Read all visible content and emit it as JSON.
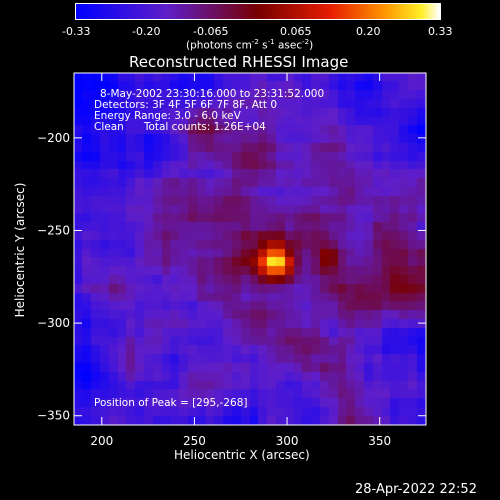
{
  "colorbar": {
    "ticks": [
      "-0.33",
      "-0.20",
      "-0.065",
      "0.065",
      "0.20",
      "0.33"
    ],
    "unit_main": "(photons cm",
    "unit_exp1": "-2",
    "unit_mid": " s",
    "unit_exp2": "-1",
    "unit_mid2": " asec",
    "unit_exp3": "-2",
    "unit_end": ")"
  },
  "chart_data": {
    "type": "heatmap",
    "title": "Reconstructed RHESSI Image",
    "xlabel": "Heliocentric X (arcsec)",
    "ylabel": "Heliocentric Y (arcsec)",
    "xlim": [
      185,
      375
    ],
    "ylim": [
      -355,
      -165
    ],
    "xticks": [
      "200",
      "250",
      "300",
      "350"
    ],
    "yticks": [
      "-200",
      "-250",
      "-300",
      "-350"
    ],
    "colorbar_range": [
      -0.33,
      0.33
    ],
    "peak": {
      "x": 295,
      "y": -268
    },
    "secondary_sources": [
      {
        "x": 323,
        "y": -265
      },
      {
        "x": 365,
        "y": -278
      }
    ],
    "info_lines": [
      "8-May-2002 23:30:16.000 to 23:31:52.000",
      "Detectors: 3F 4F 5F 6F 7F 8F, Att 0",
      "Energy Range: 3.0 - 6.0 keV",
      "Clean      Total counts: 1.26E+04"
    ],
    "peak_label": "Position of Peak = [295,-268]"
  },
  "timestamp": "28-Apr-2022 22:52"
}
